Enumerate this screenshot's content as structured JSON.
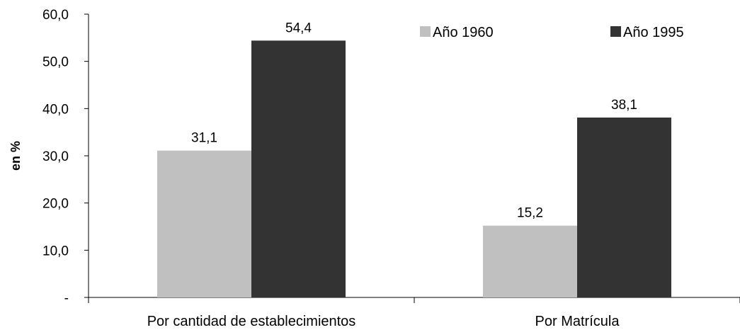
{
  "chart_data": {
    "type": "bar",
    "categories": [
      "Por cantidad de establecimientos",
      "Por Matrícula"
    ],
    "series": [
      {
        "name": "Año 1960",
        "values": [
          31.1,
          15.2
        ],
        "labels": [
          "31,1",
          "15,2"
        ],
        "color": "#c0c0c0"
      },
      {
        "name": "Año 1995",
        "values": [
          54.4,
          38.1
        ],
        "labels": [
          "54,4",
          "38,1"
        ],
        "color": "#333333"
      }
    ],
    "ylabel": "en %",
    "ylim": [
      0,
      60
    ],
    "yticks": [
      {
        "value": 0,
        "label": "-"
      },
      {
        "value": 10,
        "label": "10,0"
      },
      {
        "value": 20,
        "label": "20,0"
      },
      {
        "value": 30,
        "label": "30,0"
      },
      {
        "value": 40,
        "label": "40,0"
      },
      {
        "value": 50,
        "label": "50,0"
      },
      {
        "value": 60,
        "label": "60,0"
      }
    ],
    "grid": false,
    "legend_position": "top-right"
  }
}
